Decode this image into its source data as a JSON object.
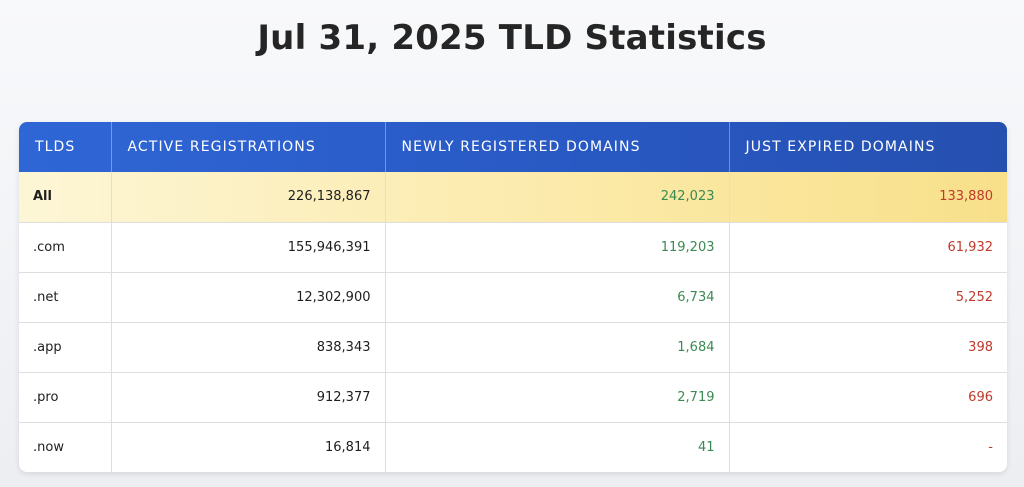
{
  "page": {
    "title": "Jul 31, 2025 TLD Statistics"
  },
  "table": {
    "headers": {
      "tlds": "TLDS",
      "active": "ACTIVE REGISTRATIONS",
      "new": "NEWLY REGISTERED DOMAINS",
      "expired": "JUST EXPIRED DOMAINS"
    },
    "rows": [
      {
        "tld": "All",
        "active": "226,138,867",
        "new": "242,023",
        "expired": "133,880"
      },
      {
        "tld": ".com",
        "active": "155,946,391",
        "new": "119,203",
        "expired": "61,932"
      },
      {
        "tld": ".net",
        "active": "12,302,900",
        "new": "6,734",
        "expired": "5,252"
      },
      {
        "tld": ".app",
        "active": "838,343",
        "new": "1,684",
        "expired": "398"
      },
      {
        "tld": ".pro",
        "active": "912,377",
        "new": "2,719",
        "expired": "696"
      },
      {
        "tld": ".now",
        "active": "16,814",
        "new": "41",
        "expired": "-"
      }
    ]
  },
  "colors": {
    "header_blue": "#2f66d6",
    "highlight_yellow": "#fbe9a6",
    "new_green": "#3b8a52",
    "expired_red": "#c0392b"
  }
}
